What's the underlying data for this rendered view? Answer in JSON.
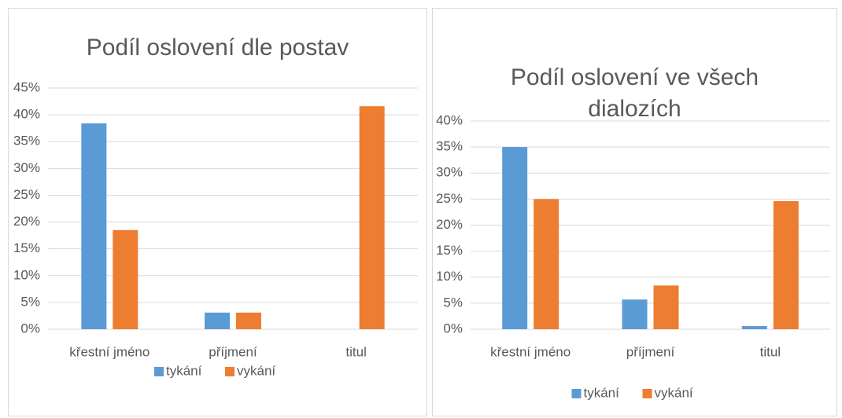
{
  "chart_data": [
    {
      "type": "bar",
      "title": "Podíl oslovení dle postav",
      "categories": [
        "křestní jméno",
        "příjmení",
        "titul"
      ],
      "series": [
        {
          "name": "tykání",
          "color": "#5b9bd5",
          "values": [
            38.4,
            3.1,
            0
          ]
        },
        {
          "name": "vykání",
          "color": "#ed7d31",
          "values": [
            18.5,
            3.1,
            41.6
          ]
        }
      ],
      "ylim": [
        0,
        45
      ],
      "yticks": [
        {
          "value": 0,
          "label": "0%"
        },
        {
          "value": 5,
          "label": "5%"
        },
        {
          "value": 10,
          "label": "10%"
        },
        {
          "value": 15,
          "label": "15%"
        },
        {
          "value": 20,
          "label": "20%"
        },
        {
          "value": 25,
          "label": "25%"
        },
        {
          "value": 30,
          "label": "30%"
        },
        {
          "value": 35,
          "label": "35%"
        },
        {
          "value": 40,
          "label": "40%"
        },
        {
          "value": 45,
          "label": "45%"
        }
      ],
      "grid": true,
      "legend": "bottom"
    },
    {
      "type": "bar",
      "title": "Podíl oslovení ve všech dialozích",
      "categories": [
        "křestní jméno",
        "příjmení",
        "titul"
      ],
      "series": [
        {
          "name": "tykání",
          "color": "#5b9bd5",
          "values": [
            35.0,
            5.7,
            0.6
          ]
        },
        {
          "name": "vykání",
          "color": "#ed7d31",
          "values": [
            25.0,
            8.4,
            24.6
          ]
        }
      ],
      "ylim": [
        0,
        40
      ],
      "yticks": [
        {
          "value": 0,
          "label": "0%"
        },
        {
          "value": 5,
          "label": "5%"
        },
        {
          "value": 10,
          "label": "10%"
        },
        {
          "value": 15,
          "label": "15%"
        },
        {
          "value": 20,
          "label": "20%"
        },
        {
          "value": 25,
          "label": "25%"
        },
        {
          "value": 30,
          "label": "30%"
        },
        {
          "value": 35,
          "label": "35%"
        },
        {
          "value": 40,
          "label": "40%"
        }
      ],
      "grid": true,
      "legend": "bottom"
    }
  ]
}
